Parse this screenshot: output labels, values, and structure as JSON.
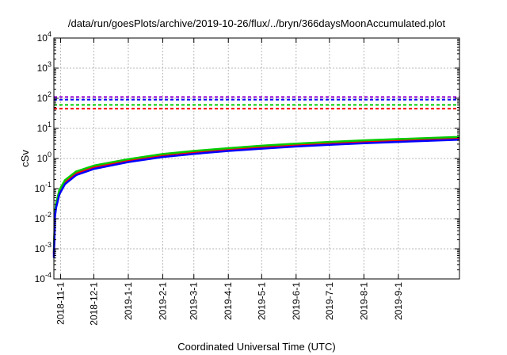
{
  "chart_data": {
    "type": "line",
    "title": "/data/run/goesPlots/archive/2019-10-26/flux/../bryn/366daysMoonAccumulated.plot",
    "xlabel": "Coordinated Universal Time (UTC)",
    "ylabel": "cSv",
    "yscale": "log",
    "ylim": [
      0.0001,
      10000
    ],
    "xlim": [
      "2018-10-26",
      "2019-10-26"
    ],
    "grid": true,
    "x_ticks": [
      "2018-11-1",
      "2018-12-1",
      "2019-1-1",
      "2019-2-1",
      "2019-3-1",
      "2019-4-1",
      "2019-5-1",
      "2019-6-1",
      "2019-7-1",
      "2019-8-1",
      "2019-9-1"
    ],
    "y_ticks": [
      {
        "value": 0.0001,
        "base": "10",
        "exp": "-4"
      },
      {
        "value": 0.001,
        "base": "10",
        "exp": "-3"
      },
      {
        "value": 0.01,
        "base": "10",
        "exp": "-2"
      },
      {
        "value": 0.1,
        "base": "10",
        "exp": "-1"
      },
      {
        "value": 1,
        "base": "10",
        "exp": "0"
      },
      {
        "value": 10,
        "base": "10",
        "exp": "1"
      },
      {
        "value": 100,
        "base": "10",
        "exp": "2"
      },
      {
        "value": 1000,
        "base": "10",
        "exp": "3"
      },
      {
        "value": 10000,
        "base": "10",
        "exp": "4"
      }
    ],
    "threshold_lines": [
      {
        "value": 45,
        "color": "#ff0000"
      },
      {
        "value": 60,
        "color": "#00cc00"
      },
      {
        "value": 90,
        "color": "#0000ff"
      },
      {
        "value": 110,
        "color": "#9400d3"
      }
    ],
    "series": [
      {
        "color": "#9400d3",
        "x": [
          "2018-10-26",
          "2018-10-27",
          "2018-10-28",
          "2018-10-31",
          "2018-11-5",
          "2018-11-15",
          "2018-12-1",
          "2019-1-1",
          "2019-2-1",
          "2019-3-1",
          "2019-4-1",
          "2019-5-1",
          "2019-6-1",
          "2019-7-1",
          "2019-8-1",
          "2019-9-1",
          "2019-10-26"
        ],
        "y": [
          0.0006,
          0.013,
          0.025,
          0.07,
          0.15,
          0.3,
          0.48,
          0.8,
          1.18,
          1.5,
          1.88,
          2.25,
          2.65,
          3.0,
          3.4,
          3.75,
          4.4
        ]
      },
      {
        "color": "#ff0000",
        "x": [
          "2018-10-26",
          "2018-10-27",
          "2018-10-28",
          "2018-10-31",
          "2018-11-5",
          "2018-11-15",
          "2018-12-1",
          "2019-1-1",
          "2019-2-1",
          "2019-3-1",
          "2019-4-1",
          "2019-5-1",
          "2019-6-1",
          "2019-7-1",
          "2019-8-1",
          "2019-9-1",
          "2019-10-26"
        ],
        "y": [
          0.0007,
          0.015,
          0.028,
          0.08,
          0.17,
          0.33,
          0.53,
          0.88,
          1.3,
          1.65,
          2.05,
          2.45,
          2.9,
          3.3,
          3.7,
          4.1,
          4.8
        ]
      },
      {
        "color": "#00cc00",
        "x": [
          "2018-10-26",
          "2018-10-27",
          "2018-10-28",
          "2018-10-31",
          "2018-11-5",
          "2018-11-15",
          "2018-12-1",
          "2019-1-1",
          "2019-2-1",
          "2019-3-1",
          "2019-4-1",
          "2019-5-1",
          "2019-6-1",
          "2019-7-1",
          "2019-8-1",
          "2019-9-1",
          "2019-10-26"
        ],
        "y": [
          0.0008,
          0.017,
          0.032,
          0.09,
          0.19,
          0.37,
          0.58,
          0.95,
          1.4,
          1.78,
          2.2,
          2.65,
          3.1,
          3.55,
          4.0,
          4.4,
          5.2
        ]
      },
      {
        "color": "#0000ff",
        "x": [
          "2018-10-26",
          "2018-10-27",
          "2018-10-28",
          "2018-10-31",
          "2018-11-5",
          "2018-11-15",
          "2018-12-1",
          "2019-1-1",
          "2019-2-1",
          "2019-3-1",
          "2019-4-1",
          "2019-5-1",
          "2019-6-1",
          "2019-7-1",
          "2019-8-1",
          "2019-9-1",
          "2019-10-26"
        ],
        "y": [
          0.0005,
          0.012,
          0.023,
          0.065,
          0.14,
          0.28,
          0.45,
          0.76,
          1.12,
          1.42,
          1.78,
          2.12,
          2.5,
          2.85,
          3.2,
          3.55,
          4.2
        ]
      }
    ]
  }
}
